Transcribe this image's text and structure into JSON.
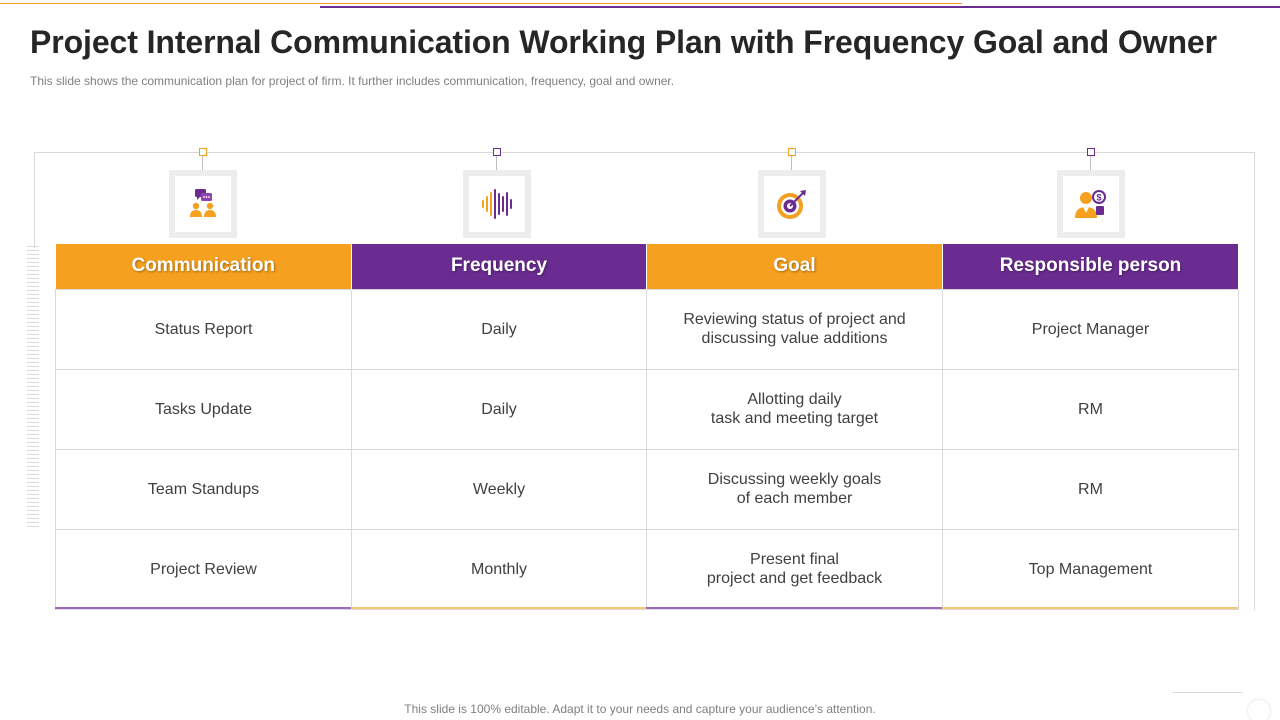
{
  "slide": {
    "title": "Project Internal Communication Working Plan with Frequency Goal and Owner",
    "subtitle": "This slide shows the communication plan for project of firm. It further includes communication, frequency, goal and owner.",
    "footer": "This slide is 100% editable. Adapt it to your needs and capture your audience’s attention."
  },
  "colors": {
    "orange": "#f5a01e",
    "purple": "#6b2c91"
  },
  "columns": [
    {
      "header": "Communication",
      "icon": "people-chat-icon",
      "color": "orange"
    },
    {
      "header": "Frequency",
      "icon": "sound-wave-icon",
      "color": "purple"
    },
    {
      "header": "Goal",
      "icon": "target-icon",
      "color": "orange"
    },
    {
      "header": "Responsible person",
      "icon": "person-dollar-icon",
      "color": "purple"
    }
  ],
  "rows": [
    {
      "communication": "Status Report",
      "frequency": "Daily",
      "goal": "Reviewing status of project and\ndiscussing value additions",
      "owner": "Project Manager"
    },
    {
      "communication": "Tasks Update",
      "frequency": "Daily",
      "goal": "Allotting daily\ntask and meeting target",
      "owner": "RM"
    },
    {
      "communication": "Team Standups",
      "frequency": "Weekly",
      "goal": "Discussing weekly goals\nof each member",
      "owner": "RM"
    },
    {
      "communication": "Project Review",
      "frequency": "Monthly",
      "goal": "Present final\nproject and get feedback",
      "owner": "Top  Management"
    }
  ]
}
